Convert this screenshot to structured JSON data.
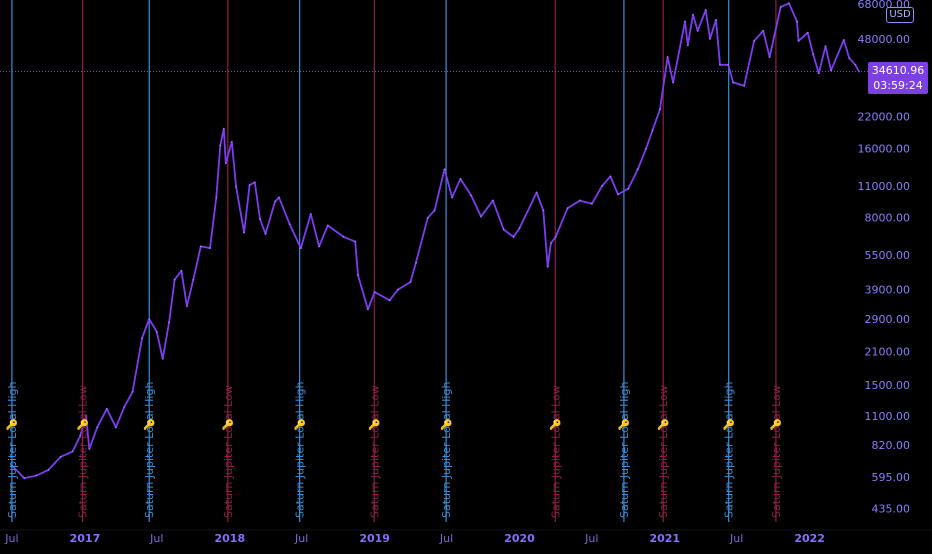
{
  "chart_data": {
    "type": "line",
    "title": "",
    "yscale": "log",
    "ylim": [
      420,
      68000
    ],
    "x_ticks": [
      {
        "label": "Jul",
        "date": "2016-07-01",
        "bold": false
      },
      {
        "label": "2017",
        "date": "2017-01-01",
        "bold": true
      },
      {
        "label": "Jul",
        "date": "2017-07-01",
        "bold": false
      },
      {
        "label": "2018",
        "date": "2018-01-01",
        "bold": true
      },
      {
        "label": "Jul",
        "date": "2018-07-01",
        "bold": false
      },
      {
        "label": "2019",
        "date": "2019-01-01",
        "bold": true
      },
      {
        "label": "Jul",
        "date": "2019-07-01",
        "bold": false
      },
      {
        "label": "2020",
        "date": "2020-01-01",
        "bold": true
      },
      {
        "label": "Jul",
        "date": "2020-07-01",
        "bold": false
      },
      {
        "label": "2021",
        "date": "2021-01-01",
        "bold": true
      },
      {
        "label": "Jul",
        "date": "2021-07-01",
        "bold": false
      },
      {
        "label": "2022",
        "date": "2022-01-01",
        "bold": true
      }
    ],
    "y_ticks": [
      {
        "label": "68000.00",
        "value": 68000
      },
      {
        "label": "48000.00",
        "value": 48000
      },
      {
        "label": "22000.00",
        "value": 22000
      },
      {
        "label": "16000.00",
        "value": 16000
      },
      {
        "label": "11000.00",
        "value": 11000
      },
      {
        "label": "8000.00",
        "value": 8000
      },
      {
        "label": "5500.00",
        "value": 5500
      },
      {
        "label": "3900.00",
        "value": 3900
      },
      {
        "label": "2900.00",
        "value": 2900
      },
      {
        "label": "2100.00",
        "value": 2100
      },
      {
        "label": "1500.00",
        "value": 1500
      },
      {
        "label": "1100.00",
        "value": 1100
      },
      {
        "label": "820.00",
        "value": 820
      },
      {
        "label": "595.00",
        "value": 595
      },
      {
        "label": "435.00",
        "value": 435
      }
    ],
    "series": [
      {
        "color": "#7d3cf0",
        "points": [
          [
            "2016-07-01",
            670
          ],
          [
            "2016-08-01",
            590
          ],
          [
            "2016-09-01",
            605
          ],
          [
            "2016-10-01",
            640
          ],
          [
            "2016-11-01",
            730
          ],
          [
            "2016-12-01",
            770
          ],
          [
            "2016-12-20",
            900
          ],
          [
            "2017-01-04",
            1100
          ],
          [
            "2017-01-12",
            790
          ],
          [
            "2017-02-01",
            980
          ],
          [
            "2017-02-25",
            1180
          ],
          [
            "2017-03-20",
            980
          ],
          [
            "2017-04-10",
            1200
          ],
          [
            "2017-05-01",
            1400
          ],
          [
            "2017-05-25",
            2400
          ],
          [
            "2017-06-12",
            2900
          ],
          [
            "2017-07-01",
            2550
          ],
          [
            "2017-07-16",
            1950
          ],
          [
            "2017-08-01",
            2800
          ],
          [
            "2017-08-15",
            4300
          ],
          [
            "2017-09-01",
            4700
          ],
          [
            "2017-09-15",
            3300
          ],
          [
            "2017-10-01",
            4300
          ],
          [
            "2017-10-20",
            6000
          ],
          [
            "2017-11-12",
            5900
          ],
          [
            "2017-11-28",
            9800
          ],
          [
            "2017-12-08",
            16500
          ],
          [
            "2017-12-17",
            19500
          ],
          [
            "2017-12-22",
            13800
          ],
          [
            "2018-01-06",
            17100
          ],
          [
            "2018-01-17",
            10900
          ],
          [
            "2018-02-06",
            6900
          ],
          [
            "2018-02-20",
            11100
          ],
          [
            "2018-03-05",
            11400
          ],
          [
            "2018-03-18",
            7900
          ],
          [
            "2018-04-01",
            6800
          ],
          [
            "2018-04-25",
            9400
          ],
          [
            "2018-05-05",
            9800
          ],
          [
            "2018-06-01",
            7500
          ],
          [
            "2018-06-29",
            5900
          ],
          [
            "2018-07-24",
            8300
          ],
          [
            "2018-08-14",
            6000
          ],
          [
            "2018-09-05",
            7400
          ],
          [
            "2018-10-15",
            6600
          ],
          [
            "2018-11-13",
            6300
          ],
          [
            "2018-11-20",
            4500
          ],
          [
            "2018-12-15",
            3200
          ],
          [
            "2019-01-01",
            3800
          ],
          [
            "2019-02-08",
            3500
          ],
          [
            "2019-03-01",
            3900
          ],
          [
            "2019-04-01",
            4200
          ],
          [
            "2019-04-15",
            5100
          ],
          [
            "2019-05-15",
            8000
          ],
          [
            "2019-06-01",
            8600
          ],
          [
            "2019-06-26",
            13000
          ],
          [
            "2019-07-15",
            9800
          ],
          [
            "2019-08-05",
            11800
          ],
          [
            "2019-09-01",
            10000
          ],
          [
            "2019-09-26",
            8100
          ],
          [
            "2019-10-26",
            9500
          ],
          [
            "2019-11-22",
            7100
          ],
          [
            "2019-12-17",
            6600
          ],
          [
            "2020-01-01",
            7200
          ],
          [
            "2020-02-13",
            10300
          ],
          [
            "2020-03-01",
            8600
          ],
          [
            "2020-03-12",
            4900
          ],
          [
            "2020-03-20",
            6200
          ],
          [
            "2020-04-01",
            6600
          ],
          [
            "2020-05-01",
            8800
          ],
          [
            "2020-06-01",
            9500
          ],
          [
            "2020-07-01",
            9200
          ],
          [
            "2020-07-27",
            11000
          ],
          [
            "2020-08-17",
            12100
          ],
          [
            "2020-09-05",
            10100
          ],
          [
            "2020-10-01",
            10700
          ],
          [
            "2020-10-25",
            13000
          ],
          [
            "2020-11-15",
            16000
          ],
          [
            "2020-12-01",
            19200
          ],
          [
            "2020-12-20",
            23700
          ],
          [
            "2021-01-08",
            40000
          ],
          [
            "2021-01-22",
            31000
          ],
          [
            "2021-02-21",
            57000
          ],
          [
            "2021-02-28",
            45000
          ],
          [
            "2021-03-13",
            61000
          ],
          [
            "2021-03-25",
            52000
          ],
          [
            "2021-04-14",
            64000
          ],
          [
            "2021-04-25",
            48000
          ],
          [
            "2021-05-10",
            58000
          ],
          [
            "2021-05-20",
            37000
          ],
          [
            "2021-06-10",
            37000
          ],
          [
            "2021-06-22",
            31000
          ],
          [
            "2021-07-20",
            30000
          ],
          [
            "2021-08-14",
            47000
          ],
          [
            "2021-09-06",
            52000
          ],
          [
            "2021-09-22",
            40000
          ],
          [
            "2021-10-20",
            66000
          ],
          [
            "2021-11-10",
            68500
          ],
          [
            "2021-11-30",
            57000
          ],
          [
            "2021-12-04",
            47000
          ],
          [
            "2021-12-27",
            51000
          ],
          [
            "2022-01-10",
            41000
          ],
          [
            "2022-01-24",
            34000
          ],
          [
            "2022-02-10",
            44500
          ],
          [
            "2022-02-24",
            35000
          ],
          [
            "2022-03-28",
            47400
          ],
          [
            "2022-04-11",
            39500
          ],
          [
            "2022-04-26",
            37000
          ],
          [
            "2022-05-05",
            34610.96
          ]
        ]
      }
    ],
    "vertical_markers": [
      {
        "date": "2016-07-01",
        "color": "#3a8fd9",
        "text": "Saturn Jupiter Local High"
      },
      {
        "date": "2016-12-26",
        "color": "#8e1f4a",
        "text": "Saturn Jupiter Local Low"
      },
      {
        "date": "2017-06-12",
        "color": "#3a8fd9",
        "text": "Saturn Jupiter Local High"
      },
      {
        "date": "2017-12-27",
        "color": "#8e1f4a",
        "text": "Saturn Jupiter Local Low"
      },
      {
        "date": "2018-06-26",
        "color": "#3a8fd9",
        "text": "Saturn Jupiter Local High"
      },
      {
        "date": "2018-12-31",
        "color": "#8e1f4a",
        "text": "Saturn Jupiter Local Low"
      },
      {
        "date": "2019-06-30",
        "color": "#3a8fd9",
        "text": "Saturn Jupiter Local High"
      },
      {
        "date": "2020-03-31",
        "color": "#8e1f4a",
        "text": "Saturn Jupiter Local Low"
      },
      {
        "date": "2020-09-20",
        "color": "#3a8fd9",
        "text": "Saturn Jupiter Local High"
      },
      {
        "date": "2020-12-28",
        "color": "#8e1f4a",
        "text": "Saturn Jupiter Local Low"
      },
      {
        "date": "2021-06-11",
        "color": "#3a8fd9",
        "text": "Saturn Jupiter Local High"
      },
      {
        "date": "2021-10-08",
        "color": "#8e1f4a",
        "text": "Saturn Jupiter Local Low"
      }
    ],
    "marker_icon": "🔑",
    "last_price": {
      "value": 34610.96,
      "label": "34610.96",
      "countdown": "03:59:24"
    },
    "currency": "USD",
    "grid": false,
    "legend": "none"
  }
}
